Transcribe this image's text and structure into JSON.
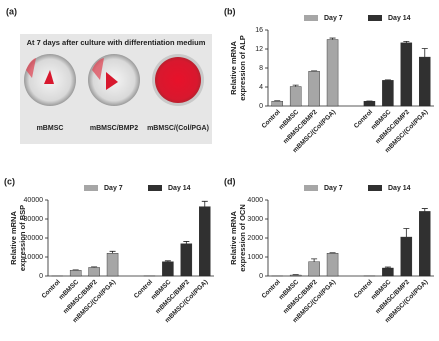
{
  "photo_panel": {
    "label": "(a)",
    "title": "At 7 days after culture with differentiation medium",
    "captions": [
      "mBMSC",
      "mBMSC/BMP2",
      "mBMSC/(Col/PGA)"
    ]
  },
  "chart_data": [
    {
      "type": "bar",
      "panel_label": "(b)",
      "ylabel": [
        "Relative mRNA",
        "expression of ALP"
      ],
      "categories": [
        "Control",
        "mBMSC",
        "mBMSC/BMP2",
        "mBMSC/(Col/PGA)",
        "Control",
        "mBMSC",
        "mBMSC/BMP2",
        "mBMSC/(Col/PGA)"
      ],
      "series": [
        {
          "name": "Day 7",
          "color": "#a6a6a6",
          "values": [
            1,
            4.1,
            7.3,
            14.0,
            null,
            null,
            null,
            null
          ],
          "errors": [
            0.1,
            0.3,
            0.1,
            0.3,
            null,
            null,
            null,
            null
          ]
        },
        {
          "name": "Day 14",
          "color": "#303030",
          "values": [
            null,
            null,
            null,
            null,
            1,
            5.4,
            13.3,
            10.3
          ],
          "errors": [
            null,
            null,
            null,
            null,
            0.05,
            0.1,
            0.3,
            1.8
          ]
        }
      ],
      "ylim": [
        0,
        16
      ],
      "yticks": [
        0,
        4,
        8,
        12,
        16
      ]
    },
    {
      "type": "bar",
      "panel_label": "(c)",
      "ylabel": [
        "Relative mRNA",
        "expression of BSP"
      ],
      "categories": [
        "Control",
        "mBMSC",
        "mBMSC/BMP2",
        "mBMSC/(Col/PGA)",
        "Control",
        "mBMSC",
        "mBMSC/BMP2",
        "mBMSC/(Col/PGA)"
      ],
      "series": [
        {
          "name": "Day 7",
          "color": "#a6a6a6",
          "values": [
            100,
            3000,
            4500,
            12000,
            null,
            null,
            null,
            null
          ],
          "errors": [
            0,
            200,
            300,
            1000,
            null,
            null,
            null,
            null
          ]
        },
        {
          "name": "Day 14",
          "color": "#303030",
          "values": [
            null,
            null,
            null,
            null,
            100,
            7500,
            17000,
            36500
          ],
          "errors": [
            null,
            null,
            null,
            null,
            0,
            500,
            1200,
            2800
          ]
        }
      ],
      "ylim": [
        0,
        40000
      ],
      "yticks": [
        0,
        10000,
        20000,
        30000,
        40000
      ]
    },
    {
      "type": "bar",
      "panel_label": "(d)",
      "ylabel": [
        "Relative mRNA",
        "expression of OCN"
      ],
      "categories": [
        "Control",
        "mBMSC",
        "mBMSC/BMP2",
        "mBMSC/(Col/PGA)",
        "Control",
        "mBMSC",
        "mBMSC/BMP2",
        "mBMSC/(Col/PGA)"
      ],
      "series": [
        {
          "name": "Day 7",
          "color": "#a6a6a6",
          "values": [
            10,
            50,
            750,
            1200,
            null,
            null,
            null,
            null
          ],
          "errors": [
            0,
            20,
            150,
            20,
            null,
            null,
            null,
            null
          ]
        },
        {
          "name": "Day 14",
          "color": "#303030",
          "values": [
            null,
            null,
            null,
            null,
            10,
            420,
            2050,
            3400
          ],
          "errors": [
            null,
            null,
            null,
            null,
            0,
            50,
            450,
            150
          ]
        }
      ],
      "ylim": [
        0,
        4000
      ],
      "yticks": [
        0,
        1000,
        2000,
        3000,
        4000
      ]
    }
  ]
}
